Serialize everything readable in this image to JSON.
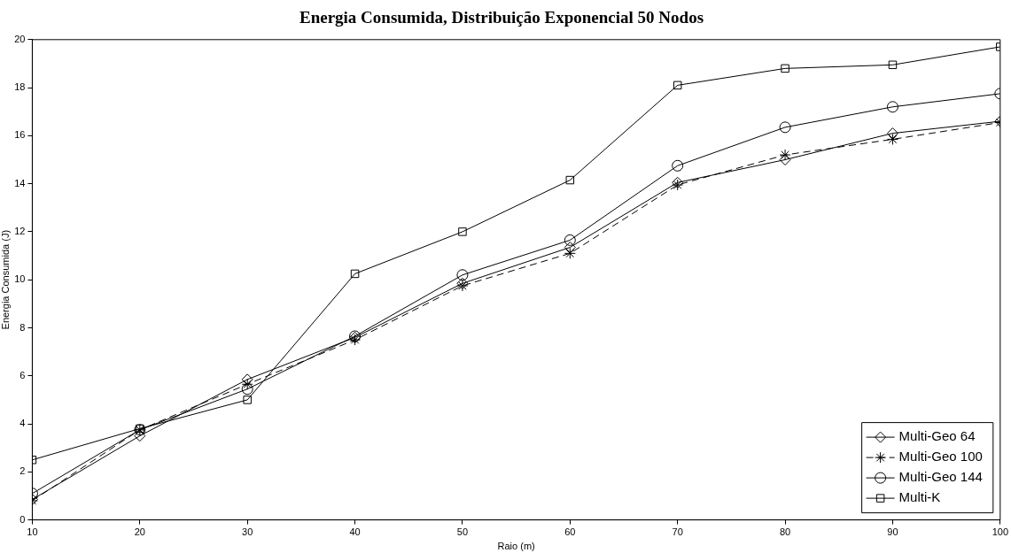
{
  "chart_data": {
    "type": "line",
    "title": "Energia Consumida, Distribuição Exponencial 50 Nodos",
    "xlabel": "Raio (m)",
    "ylabel": "Energia Consumida (J)",
    "x": [
      10,
      20,
      30,
      40,
      50,
      60,
      70,
      80,
      90,
      100
    ],
    "series": [
      {
        "name": "Multi-Geo 64",
        "color": "#000000",
        "marker": "diamond",
        "line_style": "solid",
        "values": [
          0.85,
          3.5,
          5.85,
          7.6,
          9.85,
          11.35,
          14.05,
          15.0,
          16.1,
          16.6
        ]
      },
      {
        "name": "Multi-Geo 100",
        "color": "#000000",
        "marker": "cross",
        "line_style": "dashed",
        "values": [
          0.8,
          3.75,
          5.65,
          7.5,
          9.75,
          11.1,
          13.95,
          15.2,
          15.85,
          16.55
        ]
      },
      {
        "name": "Multi-Geo 144",
        "color": "#000000",
        "marker": "circle",
        "line_style": "solid",
        "values": [
          1.1,
          3.75,
          5.45,
          7.65,
          10.2,
          11.65,
          14.75,
          16.35,
          17.2,
          17.75
        ]
      },
      {
        "name": "Multi-K",
        "color": "#000000",
        "marker": "square",
        "line_style": "solid",
        "values": [
          2.5,
          3.8,
          5.0,
          10.25,
          12.0,
          14.15,
          18.1,
          18.8,
          18.95,
          19.7
        ]
      }
    ],
    "xlim": [
      10,
      100
    ],
    "xticks": [
      10,
      20,
      30,
      40,
      50,
      60,
      70,
      80,
      90,
      100
    ],
    "ylim": [
      0,
      20
    ],
    "yticks": [
      0,
      2,
      4,
      6,
      8,
      10,
      12,
      14,
      16,
      18,
      20
    ],
    "grid": false,
    "legend": "bottom right"
  }
}
